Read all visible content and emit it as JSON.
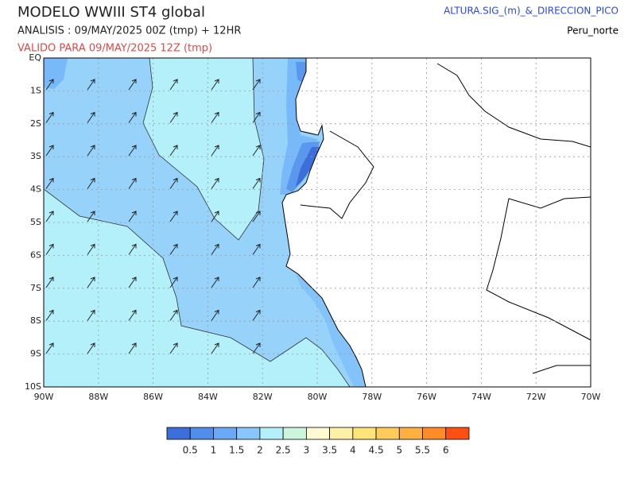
{
  "header": {
    "title": "MODELO WWIII ST4 global",
    "analysis": "ANALISIS : 09/MAY/2025 00Z  (tmp) + 12HR",
    "valid": "VALIDO PARA  09/MAY/2025 12Z  (tmp)",
    "variable": "ALTURA.SIG_(m)_&_DIRECCION_PICO",
    "region": "Peru_norte"
  },
  "map": {
    "lat_labels": [
      "EQ",
      "1S",
      "2S",
      "3S",
      "4S",
      "5S",
      "6S",
      "7S",
      "8S",
      "9S",
      "10S"
    ],
    "lon_labels": [
      "90W",
      "88W",
      "86W",
      "84W",
      "82W",
      "80W",
      "78W",
      "76W",
      "74W",
      "72W",
      "70W"
    ]
  },
  "colorbar": {
    "colors": [
      "#3c6fd9",
      "#508ee9",
      "#6aa9f5",
      "#88c6fb",
      "#b4f0fa",
      "#cbf5dc",
      "#fffad2",
      "#fff0a8",
      "#ffe47a",
      "#ffcc5a",
      "#ffb040",
      "#ff8c28",
      "#ff5014"
    ],
    "labels": [
      0.5,
      1,
      1.5,
      2,
      2.5,
      3,
      3.5,
      4,
      4.5,
      5,
      5.5,
      6
    ]
  }
}
